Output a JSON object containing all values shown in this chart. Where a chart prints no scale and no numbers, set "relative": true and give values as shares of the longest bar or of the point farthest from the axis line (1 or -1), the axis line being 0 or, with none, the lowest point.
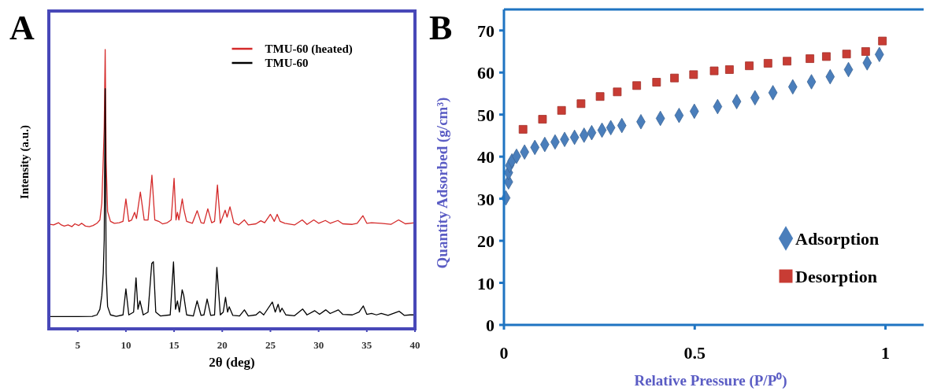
{
  "chart_data": [
    {
      "type": "line",
      "title": "A",
      "xlabel": "2θ (deg)",
      "ylabel": "Intensity (a.u.)",
      "relative": true,
      "xlim": [
        2,
        40
      ],
      "xticks": [
        5,
        10,
        15,
        20,
        25,
        30,
        35,
        40
      ],
      "tick_labels": "x",
      "legend": "top right",
      "grid": false,
      "series": [
        {
          "name": "TMU-60 (heated)",
          "color": "#d42a2a",
          "x": [
            2,
            2.5,
            3,
            3.3,
            3.6,
            4,
            4.4,
            4.7,
            5.1,
            5.4,
            5.8,
            6.2,
            6.6,
            7.0,
            7.3,
            7.5,
            7.65,
            7.75,
            7.85,
            7.95,
            8.1,
            8.4,
            8.8,
            9.3,
            9.7,
            10.0,
            10.3,
            10.6,
            10.9,
            11.1,
            11.5,
            11.9,
            12.3,
            12.7,
            13.0,
            13.4,
            13.8,
            14.3,
            14.7,
            15.0,
            15.2,
            15.35,
            15.5,
            15.85,
            16.0,
            16.3,
            16.9,
            17.4,
            17.8,
            18.1,
            18.5,
            18.9,
            19.2,
            19.5,
            19.8,
            20.3,
            20.5,
            20.8,
            21.2,
            21.7,
            22.3,
            22.7,
            23.5,
            24.0,
            24.4,
            25.0,
            25.4,
            25.7,
            26.0,
            26.5,
            27.5,
            28.3,
            28.8,
            29.5,
            30.0,
            30.7,
            31.2,
            32.0,
            32.5,
            33.5,
            34.0,
            34.6,
            35.0,
            35.5,
            36.5,
            37.5,
            38.3,
            39.0,
            40
          ],
          "values": [
            0.375,
            0.372,
            0.38,
            0.372,
            0.368,
            0.372,
            0.366,
            0.376,
            0.37,
            0.378,
            0.368,
            0.366,
            0.37,
            0.378,
            0.39,
            0.45,
            0.61,
            0.72,
            1.0,
            0.6,
            0.42,
            0.385,
            0.378,
            0.38,
            0.385,
            0.465,
            0.385,
            0.39,
            0.417,
            0.395,
            0.49,
            0.39,
            0.39,
            0.55,
            0.39,
            0.385,
            0.376,
            0.38,
            0.39,
            0.539,
            0.39,
            0.417,
            0.39,
            0.465,
            0.43,
            0.385,
            0.378,
            0.423,
            0.38,
            0.378,
            0.43,
            0.38,
            0.385,
            0.515,
            0.378,
            0.425,
            0.4,
            0.437,
            0.38,
            0.372,
            0.39,
            0.372,
            0.376,
            0.387,
            0.38,
            0.41,
            0.385,
            0.41,
            0.385,
            0.378,
            0.372,
            0.39,
            0.374,
            0.39,
            0.378,
            0.388,
            0.378,
            0.388,
            0.376,
            0.374,
            0.378,
            0.405,
            0.378,
            0.38,
            0.378,
            0.374,
            0.39,
            0.376,
            0.38
          ]
        },
        {
          "name": "TMU-60",
          "color": "#000000",
          "x": [
            2,
            5,
            6.5,
            7.0,
            7.3,
            7.5,
            7.65,
            7.75,
            7.85,
            7.95,
            8.1,
            8.4,
            9.0,
            9.7,
            10.0,
            10.3,
            10.8,
            11.05,
            11.25,
            11.46,
            11.8,
            12.3,
            12.68,
            12.85,
            13.1,
            13.6,
            14.6,
            14.94,
            15.15,
            15.35,
            15.55,
            15.84,
            16.0,
            16.3,
            17.0,
            17.39,
            17.8,
            18.1,
            18.43,
            18.8,
            19.2,
            19.44,
            19.8,
            20.1,
            20.34,
            20.55,
            20.72,
            21.1,
            21.8,
            22.3,
            22.7,
            23.5,
            23.9,
            24.3,
            25.2,
            25.5,
            25.8,
            26.0,
            26.2,
            26.6,
            27.5,
            28.35,
            28.8,
            29.6,
            30.1,
            30.74,
            31.2,
            32.05,
            32.5,
            33.5,
            34.2,
            34.64,
            35.0,
            35.5,
            36.0,
            36.5,
            37.2,
            38.37,
            38.9,
            39.5,
            40
          ],
          "values": [
            0.044,
            0.044,
            0.045,
            0.05,
            0.07,
            0.12,
            0.2,
            0.32,
            0.86,
            0.2,
            0.08,
            0.05,
            0.045,
            0.05,
            0.143,
            0.05,
            0.06,
            0.183,
            0.07,
            0.1,
            0.05,
            0.06,
            0.234,
            0.24,
            0.06,
            0.046,
            0.05,
            0.24,
            0.07,
            0.1,
            0.06,
            0.14,
            0.12,
            0.05,
            0.046,
            0.1,
            0.048,
            0.05,
            0.107,
            0.048,
            0.05,
            0.22,
            0.05,
            0.06,
            0.113,
            0.06,
            0.079,
            0.048,
            0.046,
            0.068,
            0.046,
            0.05,
            0.062,
            0.05,
            0.096,
            0.06,
            0.088,
            0.06,
            0.074,
            0.05,
            0.047,
            0.071,
            0.05,
            0.065,
            0.052,
            0.068,
            0.055,
            0.068,
            0.052,
            0.05,
            0.06,
            0.082,
            0.052,
            0.055,
            0.05,
            0.055,
            0.048,
            0.063,
            0.048,
            0.05,
            0.05
          ]
        }
      ]
    },
    {
      "type": "scatter",
      "title": "B",
      "xlabel": "Relative Pressure (P/P⁰)",
      "ylabel": "Quantity Adsorbed (g/cm³)",
      "xlim": [
        0,
        1.1
      ],
      "ylim": [
        0,
        75
      ],
      "xticks": [
        0,
        0.5,
        1
      ],
      "yticks": [
        0,
        10,
        20,
        30,
        40,
        50,
        60,
        70
      ],
      "legend": "bottom right",
      "grid": false,
      "series": [
        {
          "name": "Adsorption",
          "color": "#4a7ebb",
          "marker": "diamond",
          "x": [
            0.005,
            0.012,
            0.012,
            0.015,
            0.021,
            0.033,
            0.054,
            0.081,
            0.107,
            0.134,
            0.159,
            0.185,
            0.21,
            0.23,
            0.257,
            0.28,
            0.309,
            0.359,
            0.41,
            0.459,
            0.499,
            0.56,
            0.61,
            0.658,
            0.705,
            0.757,
            0.806,
            0.855,
            0.903,
            0.952,
            0.984
          ],
          "values": [
            30.2,
            34.0,
            36.2,
            37.9,
            39.0,
            40.1,
            41.1,
            42.2,
            42.9,
            43.5,
            44.1,
            44.6,
            45.1,
            45.7,
            46.3,
            46.9,
            47.4,
            48.3,
            49.1,
            49.8,
            50.8,
            51.9,
            53.1,
            54.0,
            55.2,
            56.6,
            57.8,
            59.0,
            60.7,
            62.3,
            64.3
          ]
        },
        {
          "name": "Desorption",
          "color": "#c83c34",
          "marker": "square",
          "x": [
            0.05,
            0.101,
            0.151,
            0.202,
            0.252,
            0.297,
            0.348,
            0.4,
            0.447,
            0.497,
            0.551,
            0.591,
            0.643,
            0.692,
            0.742,
            0.802,
            0.845,
            0.898,
            0.948,
            0.992
          ],
          "values": [
            46.5,
            48.9,
            51.0,
            52.6,
            54.3,
            55.4,
            56.9,
            57.7,
            58.7,
            59.5,
            60.4,
            60.7,
            61.6,
            62.2,
            62.7,
            63.3,
            63.8,
            64.4,
            65.0,
            67.5
          ]
        }
      ]
    }
  ]
}
